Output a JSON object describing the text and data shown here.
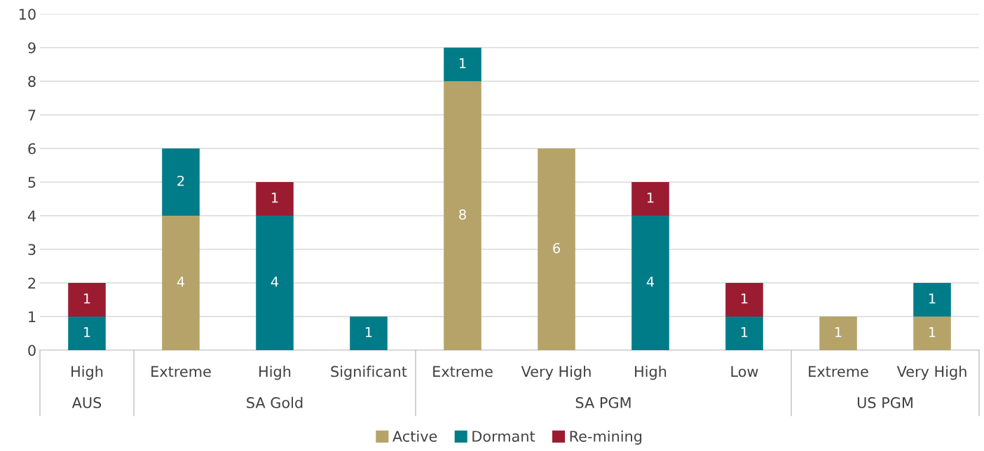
{
  "chart_data": {
    "type": "bar",
    "stacked": true,
    "categories": [
      "High",
      "Extreme",
      "High",
      "Significant",
      "Extreme",
      "Very High",
      "High",
      "Low",
      "Extreme",
      "Very High"
    ],
    "series": [
      {
        "name": "Active",
        "color": "#b5a36a",
        "values": [
          null,
          4,
          null,
          null,
          8,
          6,
          null,
          null,
          1,
          1
        ]
      },
      {
        "name": "Dormant",
        "color": "#007c89",
        "values": [
          1,
          2,
          4,
          1,
          1,
          null,
          4,
          1,
          null,
          1
        ]
      },
      {
        "name": "Re-mining",
        "color": "#9b1c31",
        "values": [
          1,
          null,
          1,
          null,
          null,
          null,
          1,
          1,
          null,
          null
        ]
      }
    ],
    "annotations": [
      "AUS",
      "SA Gold",
      "SA PGM",
      "US PGM"
    ],
    "ylim": [
      0,
      10
    ],
    "yticks": [
      0,
      1,
      2,
      3,
      4,
      5,
      6,
      7,
      8,
      9,
      10
    ],
    "grid": "y",
    "legend": "bottom",
    "data_labels": true
  }
}
